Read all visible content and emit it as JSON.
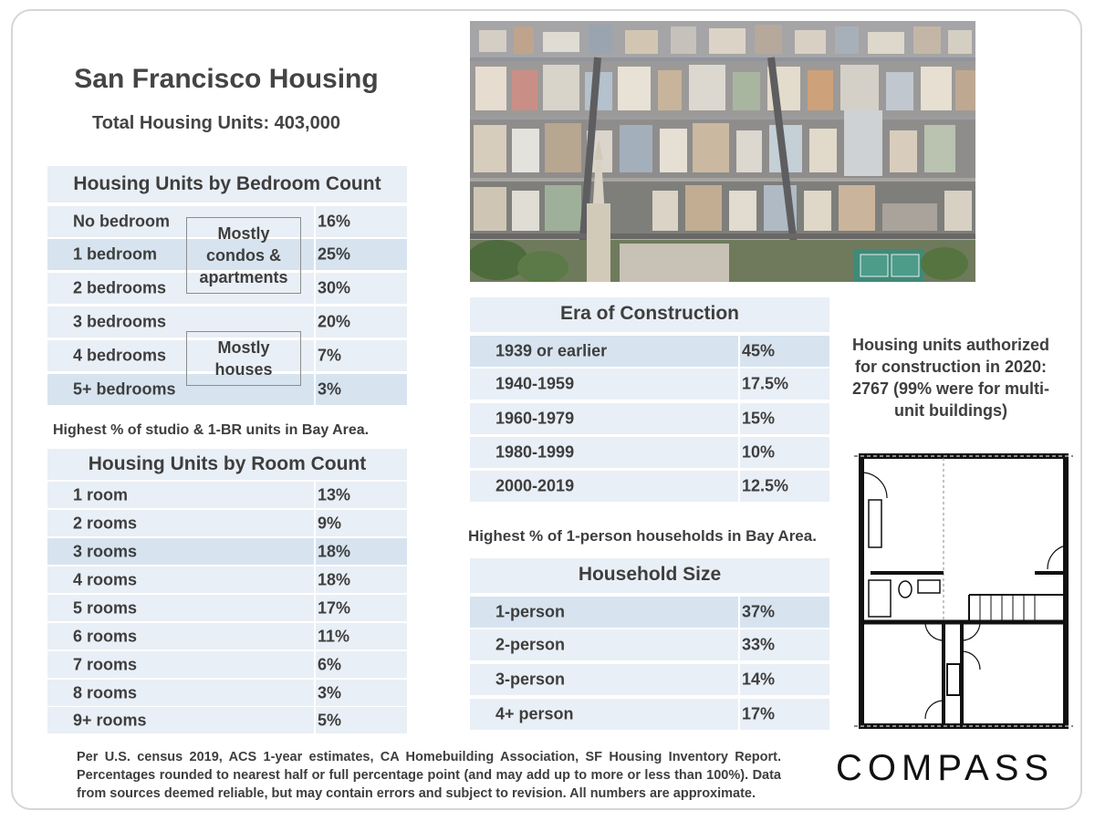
{
  "title": "San Francisco Housing",
  "subtitle": "Total Housing Units: 403,000",
  "bedroom_table": {
    "header": "Housing Units by Bedroom Count",
    "rows": [
      {
        "label": "No bedroom",
        "value": "16%"
      },
      {
        "label": "1 bedroom",
        "value": "25%"
      },
      {
        "label": "2 bedrooms",
        "value": "30%"
      },
      {
        "label": "3 bedrooms",
        "value": "20%"
      },
      {
        "label": "4 bedrooms",
        "value": "7%"
      },
      {
        "label": "5+ bedrooms",
        "value": "3%"
      }
    ],
    "box_condos": "Mostly condos & apartments",
    "box_houses": "Mostly houses"
  },
  "bedroom_note": "Highest % of studio & 1-BR units in Bay Area.",
  "room_table": {
    "header": "Housing Units by Room Count",
    "rows": [
      {
        "label": "1 room",
        "value": "13%"
      },
      {
        "label": "2 rooms",
        "value": "9%"
      },
      {
        "label": "3 rooms",
        "value": "18%"
      },
      {
        "label": "4 rooms",
        "value": "18%"
      },
      {
        "label": "5 rooms",
        "value": "17%"
      },
      {
        "label": "6 rooms",
        "value": "11%"
      },
      {
        "label": "7 rooms",
        "value": "6%"
      },
      {
        "label": "8 rooms",
        "value": "3%"
      },
      {
        "label": "9+ rooms",
        "value": "5%"
      }
    ]
  },
  "era_table": {
    "header": "Era of Construction",
    "rows": [
      {
        "label": "1939 or earlier",
        "value": "45%"
      },
      {
        "label": "1940-1959",
        "value": "17.5%"
      },
      {
        "label": "1960-1979",
        "value": "15%"
      },
      {
        "label": "1980-1999",
        "value": "10%"
      },
      {
        "label": "2000-2019",
        "value": "12.5%"
      }
    ]
  },
  "household_note": "Highest % of 1-person households in Bay Area.",
  "household_table": {
    "header": "Household Size",
    "rows": [
      {
        "label": "1-person",
        "value": "37%"
      },
      {
        "label": "2-person",
        "value": "33%"
      },
      {
        "label": "3-person",
        "value": "14%"
      },
      {
        "label": "4+ person",
        "value": "17%"
      }
    ]
  },
  "authorized_text": "Housing units authorized for construction in 2020: 2767 (99% were for multi-unit buildings)",
  "footer": "Per U.S. census 2019, ACS 1-year estimates, CA Homebuilding Association, SF Housing Inventory Report. Percentages rounded to nearest half or full percentage point (and may add up to more or less than 100%). Data from sources deemed reliable, but may contain errors and subject to revision. All numbers are approximate.",
  "logo": "COMPASS",
  "colors": {
    "light_row": "#e9eff6",
    "mid_row": "#d7e4f0",
    "text": "#3e3e3e"
  },
  "icons": {
    "photo": "city-aerial-photo",
    "floorplan": "floor-plan-drawing"
  }
}
